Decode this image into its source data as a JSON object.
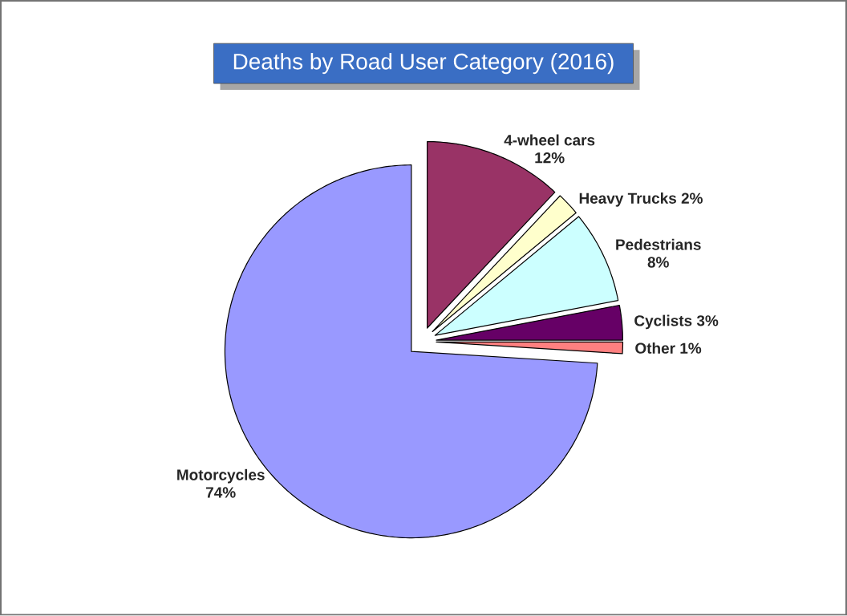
{
  "chart_data": {
    "type": "pie",
    "title": "Deaths by Road User Category (2016)",
    "categories": [
      "4-wheel cars",
      "Heavy Trucks",
      "Pedestrians",
      "Cyclists",
      "Other",
      "Motorcycles"
    ],
    "values": [
      12,
      2,
      8,
      3,
      1,
      74
    ],
    "value_labels": [
      "12%",
      "2%",
      "8%",
      "3%",
      "1%",
      "74%"
    ],
    "colors": [
      "#993366",
      "#ffffcc",
      "#ccffff",
      "#660066",
      "#ff8080",
      "#9999ff"
    ]
  }
}
